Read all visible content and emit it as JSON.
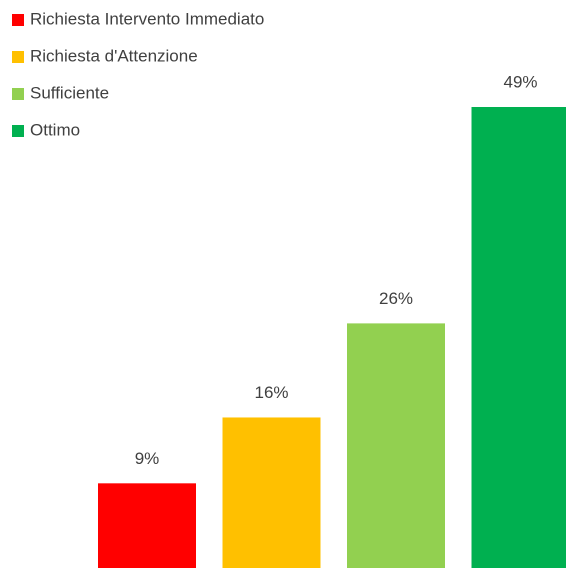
{
  "chart_data": {
    "type": "bar",
    "categories": [
      null
    ],
    "series": [
      {
        "name": "Richiesta Intervento Immediato",
        "color": "#ff0000",
        "values": [
          9
        ],
        "value_labels": [
          "9%"
        ]
      },
      {
        "name": "Richiesta d'Attenzione",
        "color": "#ffc000",
        "values": [
          16
        ],
        "value_labels": [
          "16%"
        ]
      },
      {
        "name": "Sufficiente",
        "color": "#92d050",
        "values": [
          26
        ],
        "value_labels": [
          "26%"
        ]
      },
      {
        "name": "Ottimo",
        "color": "#00b050",
        "values": [
          49
        ],
        "value_labels": [
          "49%"
        ]
      }
    ],
    "legend": "top-left"
  }
}
